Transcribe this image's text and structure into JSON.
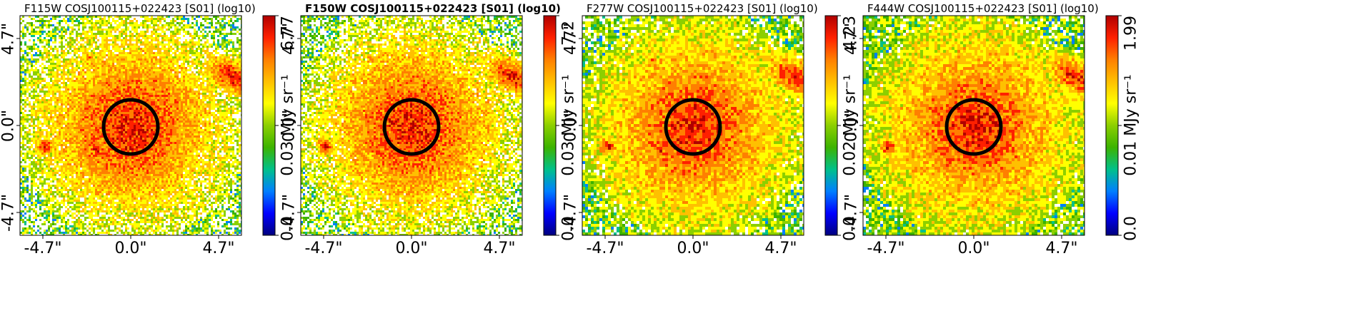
{
  "panels": [
    {
      "title": "F115W COSJ100115+022423 [S01] (log10)",
      "title_bold": false,
      "x_ticks": [
        "-4.7\"",
        "0.0\"",
        "4.7\""
      ],
      "y_ticks": [
        "4.7\"",
        "0.0\"",
        "-4.7\""
      ],
      "colorbar": {
        "max": "6.77",
        "mid": "0.03",
        "min": "0.0",
        "unit": "MJy sr⁻¹"
      },
      "noise_density": 0.35
    },
    {
      "title": "F150W COSJ100115+022423 [S01] (log10)",
      "title_bold": true,
      "x_ticks": [
        "-4.7\"",
        "0.0\"",
        "4.7\""
      ],
      "y_ticks": [
        "4.7\"",
        "0.0\"",
        "-4.7\""
      ],
      "colorbar": {
        "max": "7.2",
        "mid": "0.03",
        "min": "0.0",
        "unit": "MJy sr⁻¹"
      },
      "noise_density": 0.35
    },
    {
      "title": "F277W COSJ100115+022423 [S01] (log10)",
      "title_bold": false,
      "x_ticks": [
        "-4.7\"",
        "0.0\"",
        "4.7\""
      ],
      "y_ticks": [
        "4.7\"",
        "0.0\"",
        "-4.7\""
      ],
      "colorbar": {
        "max": "4.23",
        "mid": "0.02",
        "min": "0.0",
        "unit": "MJy sr⁻¹"
      },
      "noise_density": 0.55
    },
    {
      "title": "F444W COSJ100115+022423 [S01] (log10)",
      "title_bold": false,
      "x_ticks": [
        "-4.7\"",
        "0.0\"",
        "4.7\""
      ],
      "y_ticks": [
        "4.7\"",
        "0.0\"",
        "-4.7\""
      ],
      "colorbar": {
        "max": "1.99",
        "mid": "0.01",
        "min": "0.0",
        "unit": "MJy sr⁻¹"
      },
      "noise_density": 0.6
    }
  ],
  "colormap": [
    "#00007f",
    "#0000ff",
    "#007fff",
    "#00c08a",
    "#3cb300",
    "#8ccf00",
    "#ffff00",
    "#ffc000",
    "#ff7f00",
    "#ff2000",
    "#b00000"
  ]
}
